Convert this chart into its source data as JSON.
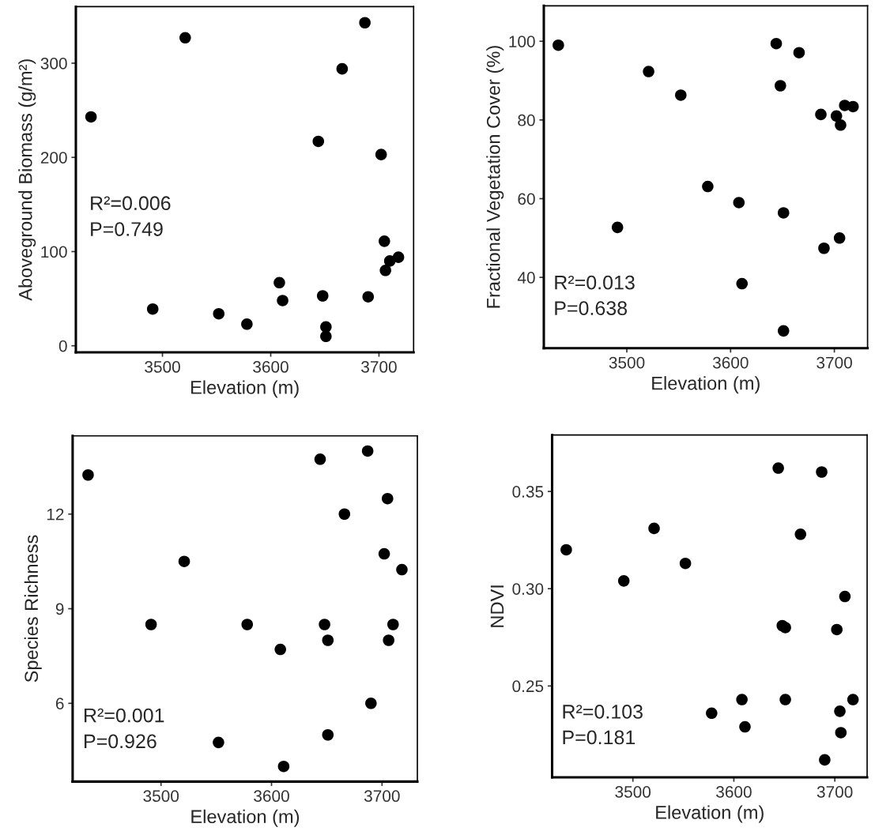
{
  "chart_data": [
    {
      "type": "scatter",
      "xlabel": "Elevation (m)",
      "ylabel": "Aboveground Biomass (g/m²)",
      "marker": "circle",
      "grid": false,
      "x": [
        3434,
        3491,
        3521,
        3552,
        3578,
        3608,
        3611,
        3644,
        3648,
        3651,
        3651,
        3666,
        3687,
        3690,
        3702,
        3705,
        3706,
        3710,
        3718
      ],
      "series": [
        {
          "color": "#000000",
          "values": [
            243,
            39,
            327,
            34,
            23,
            67,
            48,
            217,
            53,
            20,
            10,
            294,
            343,
            52,
            203,
            111,
            80,
            90,
            94
          ]
        }
      ],
      "xlim": [
        3420,
        3732
      ],
      "xticks": [
        3500,
        3600,
        3700
      ],
      "ylim": [
        -7,
        360
      ],
      "yticks": [
        0,
        100,
        200,
        300
      ],
      "annotations": [
        "R²=0.006",
        "P=0.749"
      ]
    },
    {
      "type": "scatter",
      "xlabel": "Elevation (m)",
      "ylabel": "Fractional Vegetation Cover (%)",
      "marker": "circle",
      "grid": false,
      "x": [
        3434,
        3491,
        3521,
        3552,
        3578,
        3608,
        3611,
        3644,
        3648,
        3651,
        3651,
        3666,
        3687,
        3690,
        3702,
        3705,
        3706,
        3710,
        3718
      ],
      "series": [
        {
          "color": "#000000",
          "values": [
            99.0,
            52.7,
            92.3,
            86.3,
            63.1,
            59.0,
            38.4,
            99.4,
            88.7,
            56.4,
            26.4,
            97.1,
            81.4,
            47.4,
            81.0,
            50.0,
            78.7,
            83.7,
            83.4
          ]
        }
      ],
      "xlim": [
        3420,
        3732
      ],
      "xticks": [
        3500,
        3600,
        3700
      ],
      "ylim": [
        22,
        109
      ],
      "yticks": [
        40,
        60,
        80,
        100
      ],
      "annotations": [
        "R²=0.013",
        "P=0.638"
      ]
    },
    {
      "type": "scatter",
      "xlabel": "Elevation (m)",
      "ylabel": "Species Richness",
      "marker": "circle",
      "grid": false,
      "x": [
        3434,
        3491,
        3521,
        3552,
        3578,
        3608,
        3611,
        3644,
        3648,
        3651,
        3651,
        3666,
        3687,
        3690,
        3702,
        3705,
        3706,
        3710,
        3718
      ],
      "series": [
        {
          "color": "#000000",
          "values": [
            13.24,
            8.5,
            10.5,
            4.76,
            8.5,
            7.71,
            4.0,
            13.74,
            8.5,
            8.0,
            5.0,
            12.0,
            14.0,
            6.0,
            10.74,
            12.49,
            8.0,
            8.5,
            10.24
          ]
        }
      ],
      "xlim": [
        3420,
        3732
      ],
      "xticks": [
        3500,
        3600,
        3700
      ],
      "ylim": [
        3.52,
        14.48
      ],
      "yticks": [
        6,
        9,
        12
      ],
      "annotations": [
        "R²=0.001",
        "P=0.926"
      ]
    },
    {
      "type": "scatter",
      "xlabel": "Elevation (m)",
      "ylabel": "NDVI",
      "marker": "circle",
      "grid": false,
      "x": [
        3434,
        3491,
        3521,
        3552,
        3578,
        3608,
        3611,
        3644,
        3648,
        3651,
        3651,
        3666,
        3687,
        3690,
        3702,
        3705,
        3706,
        3710,
        3718
      ],
      "series": [
        {
          "color": "#000000",
          "values": [
            0.32,
            0.304,
            0.331,
            0.313,
            0.236,
            0.243,
            0.229,
            0.362,
            0.281,
            0.28,
            0.243,
            0.328,
            0.36,
            0.212,
            0.279,
            0.237,
            0.226,
            0.296,
            0.243
          ]
        }
      ],
      "xlim": [
        3420,
        3732
      ],
      "xticks": [
        3500,
        3600,
        3700
      ],
      "ylim": [
        0.203,
        0.379
      ],
      "yticks": [
        {
          "value": 0.25,
          "label": "0.25"
        },
        {
          "value": 0.3,
          "label": "0.30"
        },
        {
          "value": 0.35,
          "label": "0.35"
        }
      ],
      "annotations": [
        "R²=0.103",
        "P=0.181"
      ]
    }
  ]
}
